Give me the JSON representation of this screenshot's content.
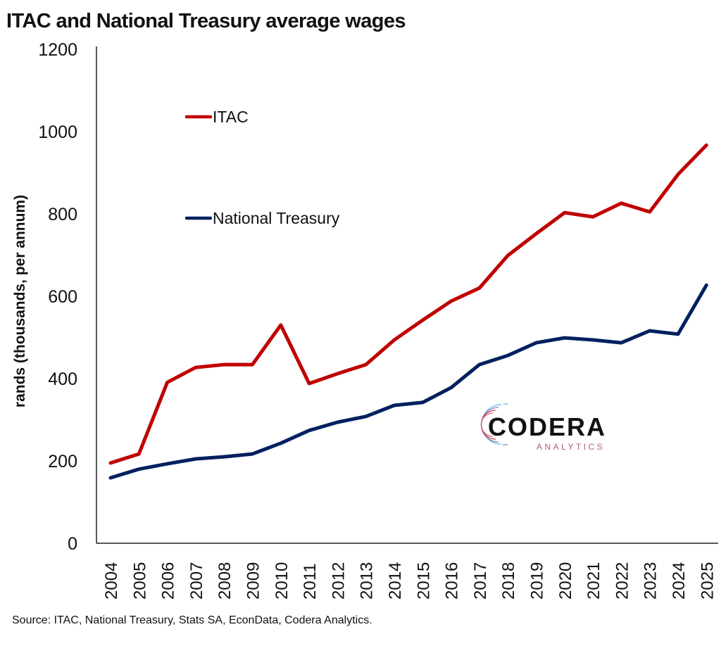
{
  "chart_data": {
    "type": "line",
    "title": "ITAC and National Treasury average wages",
    "xlabel": "",
    "ylabel": "rands (thousands, per annum)",
    "ylim": [
      0,
      1200
    ],
    "yticks": [
      "0",
      "200",
      "400",
      "600",
      "800",
      "1000",
      "1200"
    ],
    "categories": [
      "2004",
      "2005",
      "2006",
      "2007",
      "2008",
      "2009",
      "2010",
      "2011",
      "2012",
      "2013",
      "2014",
      "2015",
      "2016",
      "2017",
      "2018",
      "2019",
      "2020",
      "2021",
      "2022",
      "2023",
      "2024",
      "2025"
    ],
    "grid": false,
    "legend_position": "top-left",
    "series": [
      {
        "name": "ITAC",
        "color": "#c00000",
        "values": [
          195,
          217,
          391,
          427,
          434,
          434,
          530,
          388,
          412,
          434,
          494,
          542,
          588,
          620,
          699,
          752,
          803,
          793,
          826,
          805,
          896,
          967
        ]
      },
      {
        "name": "National Treasury",
        "color": "#002060",
        "values": [
          159,
          180,
          193,
          205,
          210,
          217,
          243,
          274,
          294,
          308,
          335,
          342,
          378,
          434,
          456,
          487,
          499,
          494,
          487,
          516,
          508,
          627
        ]
      }
    ],
    "source": "Source: ITAC, National Treasury, Stats SA, EconData, Codera Analytics."
  },
  "logo": {
    "name": "CODERA",
    "tagline": "ANALYTICS"
  }
}
